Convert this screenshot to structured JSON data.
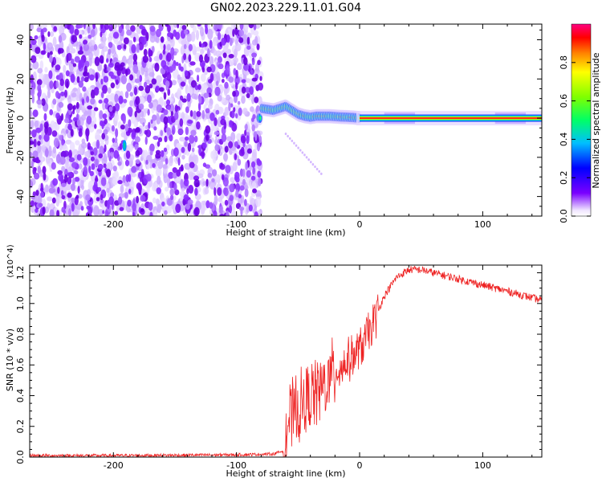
{
  "title": "GN02.2023.229.11.01.G04",
  "chart_data": [
    {
      "type": "heatmap",
      "xlabel": "Height of straight line (km)",
      "ylabel": "Frequency (Hz)",
      "xlim": [
        -268,
        148
      ],
      "ylim": [
        -50,
        48
      ],
      "x_ticks": [
        -200,
        -100,
        0,
        100
      ],
      "y_ticks": [
        -40,
        -20,
        0,
        20,
        40
      ],
      "colorbar": {
        "label": "Normalized spectral amplitude",
        "range": [
          0,
          1
        ],
        "ticks": [
          "0.0",
          "0.2",
          "0.4",
          "0.6",
          "0.8"
        ]
      },
      "ridge": [
        {
          "x": -80,
          "f": 5.0
        },
        {
          "x": -75,
          "f": 4.5
        },
        {
          "x": -70,
          "f": 4.0
        },
        {
          "x": -65,
          "f": 5.0
        },
        {
          "x": -60,
          "f": 6.0
        },
        {
          "x": -55,
          "f": 4.0
        },
        {
          "x": -50,
          "f": 2.0
        },
        {
          "x": -45,
          "f": 1.0
        },
        {
          "x": -40,
          "f": 0.5
        },
        {
          "x": -35,
          "f": 1.0
        },
        {
          "x": -30,
          "f": 1.0
        },
        {
          "x": -25,
          "f": 1.0
        },
        {
          "x": -20,
          "f": 0.8
        },
        {
          "x": -15,
          "f": 0.6
        },
        {
          "x": -10,
          "f": 0.5
        },
        {
          "x": -5,
          "f": 0.3
        },
        {
          "x": 0,
          "f": 0.0
        },
        {
          "x": 148,
          "f": 0.0
        }
      ],
      "noise_region_xmax": -80
    },
    {
      "type": "line",
      "xlabel": "Height of straight line (km)",
      "ylabel": "SNR (10 * v/v)",
      "y_scale_label": "(x10^4)",
      "xlim": [
        -268,
        148
      ],
      "ylim": [
        0,
        1.25
      ],
      "x_ticks": [
        -200,
        -100,
        0,
        100
      ],
      "y_ticks": [
        "0.0",
        "0.2",
        "0.4",
        "0.6",
        "0.8",
        "1.0",
        "1.2"
      ],
      "series": [
        {
          "name": "SNR",
          "color": "#ee2222",
          "x": [
            -268,
            -200,
            -150,
            -100,
            -70,
            -62,
            -58,
            -50,
            -40,
            -30,
            -20,
            -10,
            0,
            10,
            20,
            30,
            40,
            50,
            60,
            80,
            100,
            120,
            148
          ],
          "y": [
            0.01,
            0.01,
            0.012,
            0.015,
            0.02,
            0.04,
            0.25,
            0.3,
            0.4,
            0.45,
            0.55,
            0.62,
            0.7,
            0.85,
            1.05,
            1.17,
            1.22,
            1.22,
            1.2,
            1.16,
            1.12,
            1.08,
            1.02
          ]
        }
      ]
    }
  ]
}
